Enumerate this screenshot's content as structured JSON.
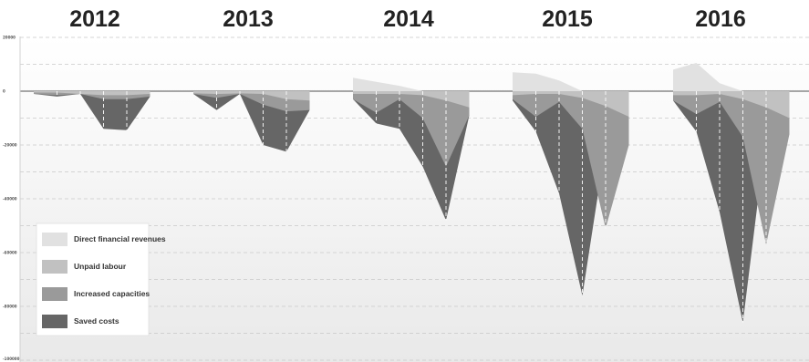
{
  "chart_data": {
    "type": "area",
    "title": "",
    "xlabel": "",
    "ylabel": "",
    "panels": [
      "2012",
      "2013",
      "2014",
      "2015",
      "2016"
    ],
    "ylim": [
      -100000,
      20000
    ],
    "y_ticks": [
      "20000",
      "0",
      "-20000",
      "-40000",
      "-60000",
      "-80000",
      "-100000"
    ],
    "grid": true,
    "legend_position": "bottom-left",
    "colors": {
      "Direct financial revenues": "#e1e1e1",
      "Unpaid labour": "#c1c1c1",
      "Increased capacities": "#9a9a9a",
      "Saved costs": "#666666"
    },
    "series": [
      {
        "name": "Direct financial revenues",
        "values": [
          [
            0,
            0,
            0,
            0,
            0,
            0
          ],
          [
            0,
            0,
            0,
            0,
            0,
            0
          ],
          [
            5000,
            3500,
            2000,
            0,
            0,
            0
          ],
          [
            7000,
            6500,
            4000,
            0,
            0,
            0
          ],
          [
            8000,
            10500,
            3000,
            0,
            0,
            0
          ]
        ]
      },
      {
        "name": "Unpaid labour",
        "values": [
          [
            -500,
            -500,
            -1000,
            -1500,
            -1500,
            -1000
          ],
          [
            -800,
            -1000,
            -800,
            -1000,
            -3000,
            -3500
          ],
          [
            -1000,
            -1000,
            -1000,
            -1500,
            -3500,
            -6000
          ],
          [
            -1500,
            -1000,
            -1000,
            -2500,
            -5500,
            -9500
          ],
          [
            -1500,
            -1500,
            -1000,
            -3000,
            -6000,
            -10000
          ]
        ]
      },
      {
        "name": "Increased capacities",
        "values": [
          [
            -1000,
            -1500,
            -1000,
            -3000,
            -3000,
            -2000
          ],
          [
            -1000,
            -2500,
            -1000,
            -5000,
            -7500,
            -7000
          ],
          [
            -3000,
            -8000,
            -3000,
            -10000,
            -28000,
            -9000
          ],
          [
            -3000,
            -9500,
            -4000,
            -14000,
            -51000,
            -20000
          ],
          [
            -3500,
            -8500,
            -4000,
            -17000,
            -57000,
            -16000
          ]
        ]
      },
      {
        "name": "Saved costs",
        "values": [
          [
            -1000,
            -2000,
            -1000,
            -14000,
            -14500,
            -2000
          ],
          [
            -1000,
            -7000,
            -1000,
            -20000,
            -22500,
            -7000
          ],
          [
            -3000,
            -12000,
            -14000,
            -28000,
            -48000,
            -9000
          ],
          [
            -3500,
            -15000,
            -38000,
            -76000,
            -20000,
            -20000
          ],
          [
            -3500,
            -15000,
            -45000,
            -86000,
            -16000,
            -16000
          ]
        ]
      }
    ]
  },
  "legend": {
    "items": [
      {
        "label": "Direct financial revenues",
        "color": "#e1e1e1"
      },
      {
        "label": "Unpaid labour",
        "color": "#c1c1c1"
      },
      {
        "label": "Increased capacities",
        "color": "#9a9a9a"
      },
      {
        "label": "Saved costs",
        "color": "#666666"
      }
    ]
  }
}
